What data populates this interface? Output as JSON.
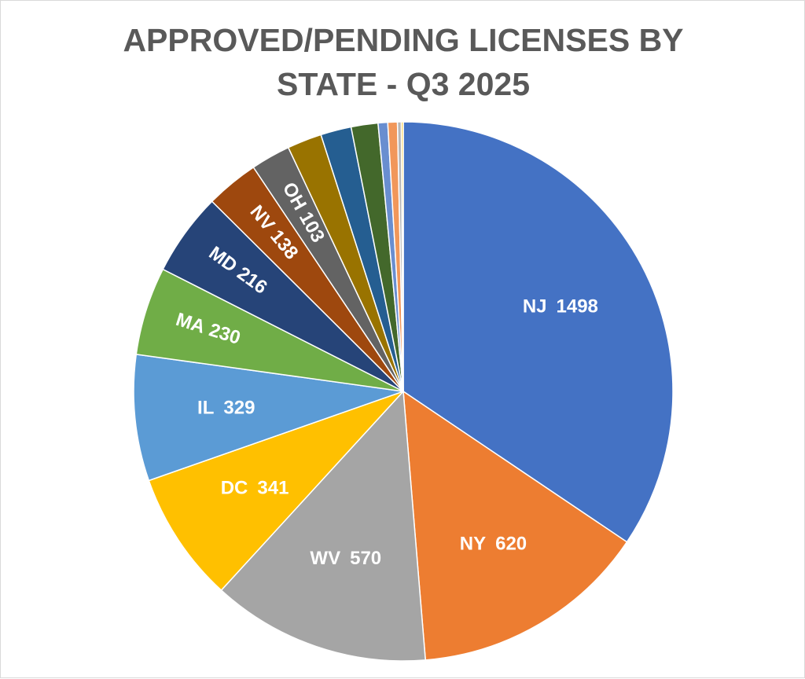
{
  "chart_data": {
    "type": "pie",
    "title": "APPROVED/PENDING LICENSES BY STATE - Q3 2025",
    "categories": [
      "NJ",
      "NY",
      "WV",
      "DC",
      "IL",
      "MA",
      "MD",
      "NV",
      "OH",
      null,
      null,
      null,
      null,
      null,
      null,
      null
    ],
    "values": [
      1498,
      620,
      570,
      341,
      329,
      230,
      216,
      138,
      103,
      90,
      80,
      70,
      25,
      25,
      10,
      5
    ],
    "colors": [
      "#4472c4",
      "#ed7d31",
      "#a5a5a5",
      "#ffc000",
      "#5b9bd5",
      "#70ad47",
      "#264478",
      "#9e480e",
      "#636363",
      "#997300",
      "#255e91",
      "#43682b",
      "#698ed0",
      "#f1975a",
      "#b7b7b7",
      "#ffcd33"
    ]
  }
}
